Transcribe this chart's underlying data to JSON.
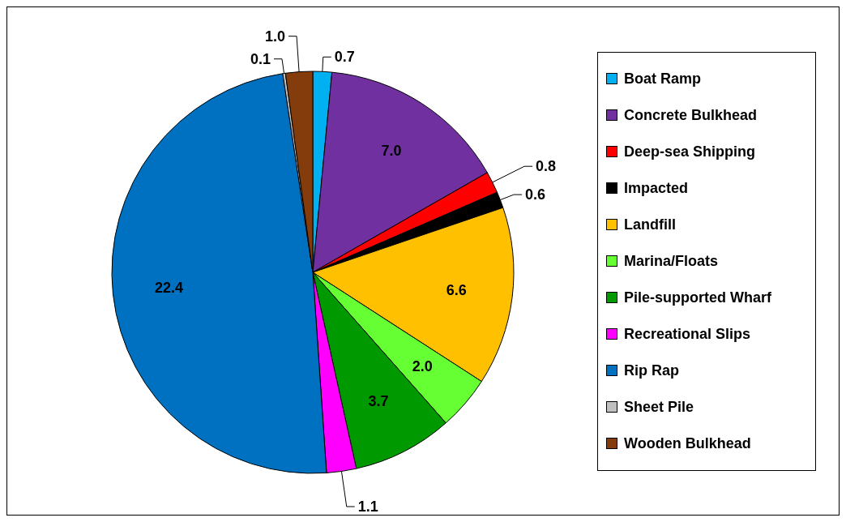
{
  "chart_data": {
    "type": "pie",
    "categories": [
      "Boat Ramp",
      "Concrete Bulkhead",
      "Deep-sea Shipping",
      "Impacted",
      "Landfill",
      "Marina/Floats",
      "Pile-supported Wharf",
      "Recreational Slips",
      "Rip Rap",
      "Sheet Pile",
      "Wooden Bulkhead"
    ],
    "values": [
      0.7,
      7.0,
      0.8,
      0.6,
      6.6,
      2.0,
      3.7,
      1.1,
      22.4,
      0.1,
      1.0
    ],
    "colors": [
      "#00b0f0",
      "#7030a0",
      "#ff0000",
      "#000000",
      "#ffc000",
      "#66ff33",
      "#009900",
      "#ff00ff",
      "#0070c0",
      "#c0c0c0",
      "#843c0c"
    ],
    "value_labels": [
      "0.7",
      "7.0",
      "0.8",
      "0.6",
      "6.6",
      "2.0",
      "3.7",
      "1.1",
      "22.4",
      "0.1",
      "1.0"
    ],
    "legend": "right"
  }
}
